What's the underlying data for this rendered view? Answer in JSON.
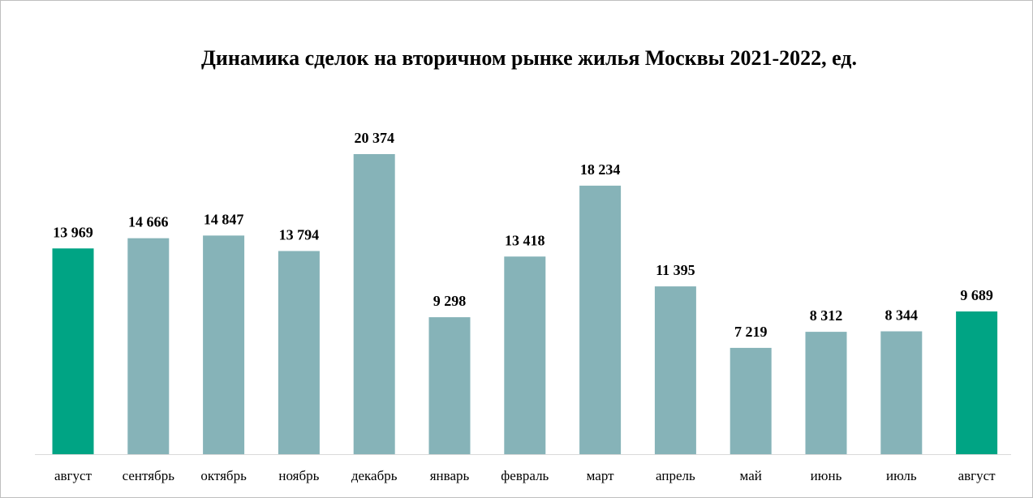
{
  "chart_data": {
    "type": "bar",
    "title": "Динамика сделок на вторичном рынке жилья Москвы 2021-2022, ед.",
    "categories": [
      "август",
      "сентябрь",
      "октябрь",
      "ноябрь",
      "декабрь",
      "январь",
      "февраль",
      "март",
      "апрель",
      "май",
      "июнь",
      "июль",
      "август"
    ],
    "values": [
      13969,
      14666,
      14847,
      13794,
      20374,
      9298,
      13418,
      18234,
      11395,
      7219,
      8312,
      8344,
      9689
    ],
    "value_labels": [
      "13 969",
      "14 666",
      "14 847",
      "13 794",
      "20 374",
      "9 298",
      "13 418",
      "18 234",
      "11 395",
      "7 219",
      "8 312",
      "8 344",
      "9 689"
    ],
    "highlighted": [
      true,
      false,
      false,
      false,
      false,
      false,
      false,
      false,
      false,
      false,
      false,
      false,
      true
    ],
    "ylim": [
      0,
      20374
    ],
    "grid": false,
    "legend": "none",
    "colors": {
      "bar": "#86b3b8",
      "highlight": "#00a484",
      "axis": "#d9d9d9"
    }
  }
}
